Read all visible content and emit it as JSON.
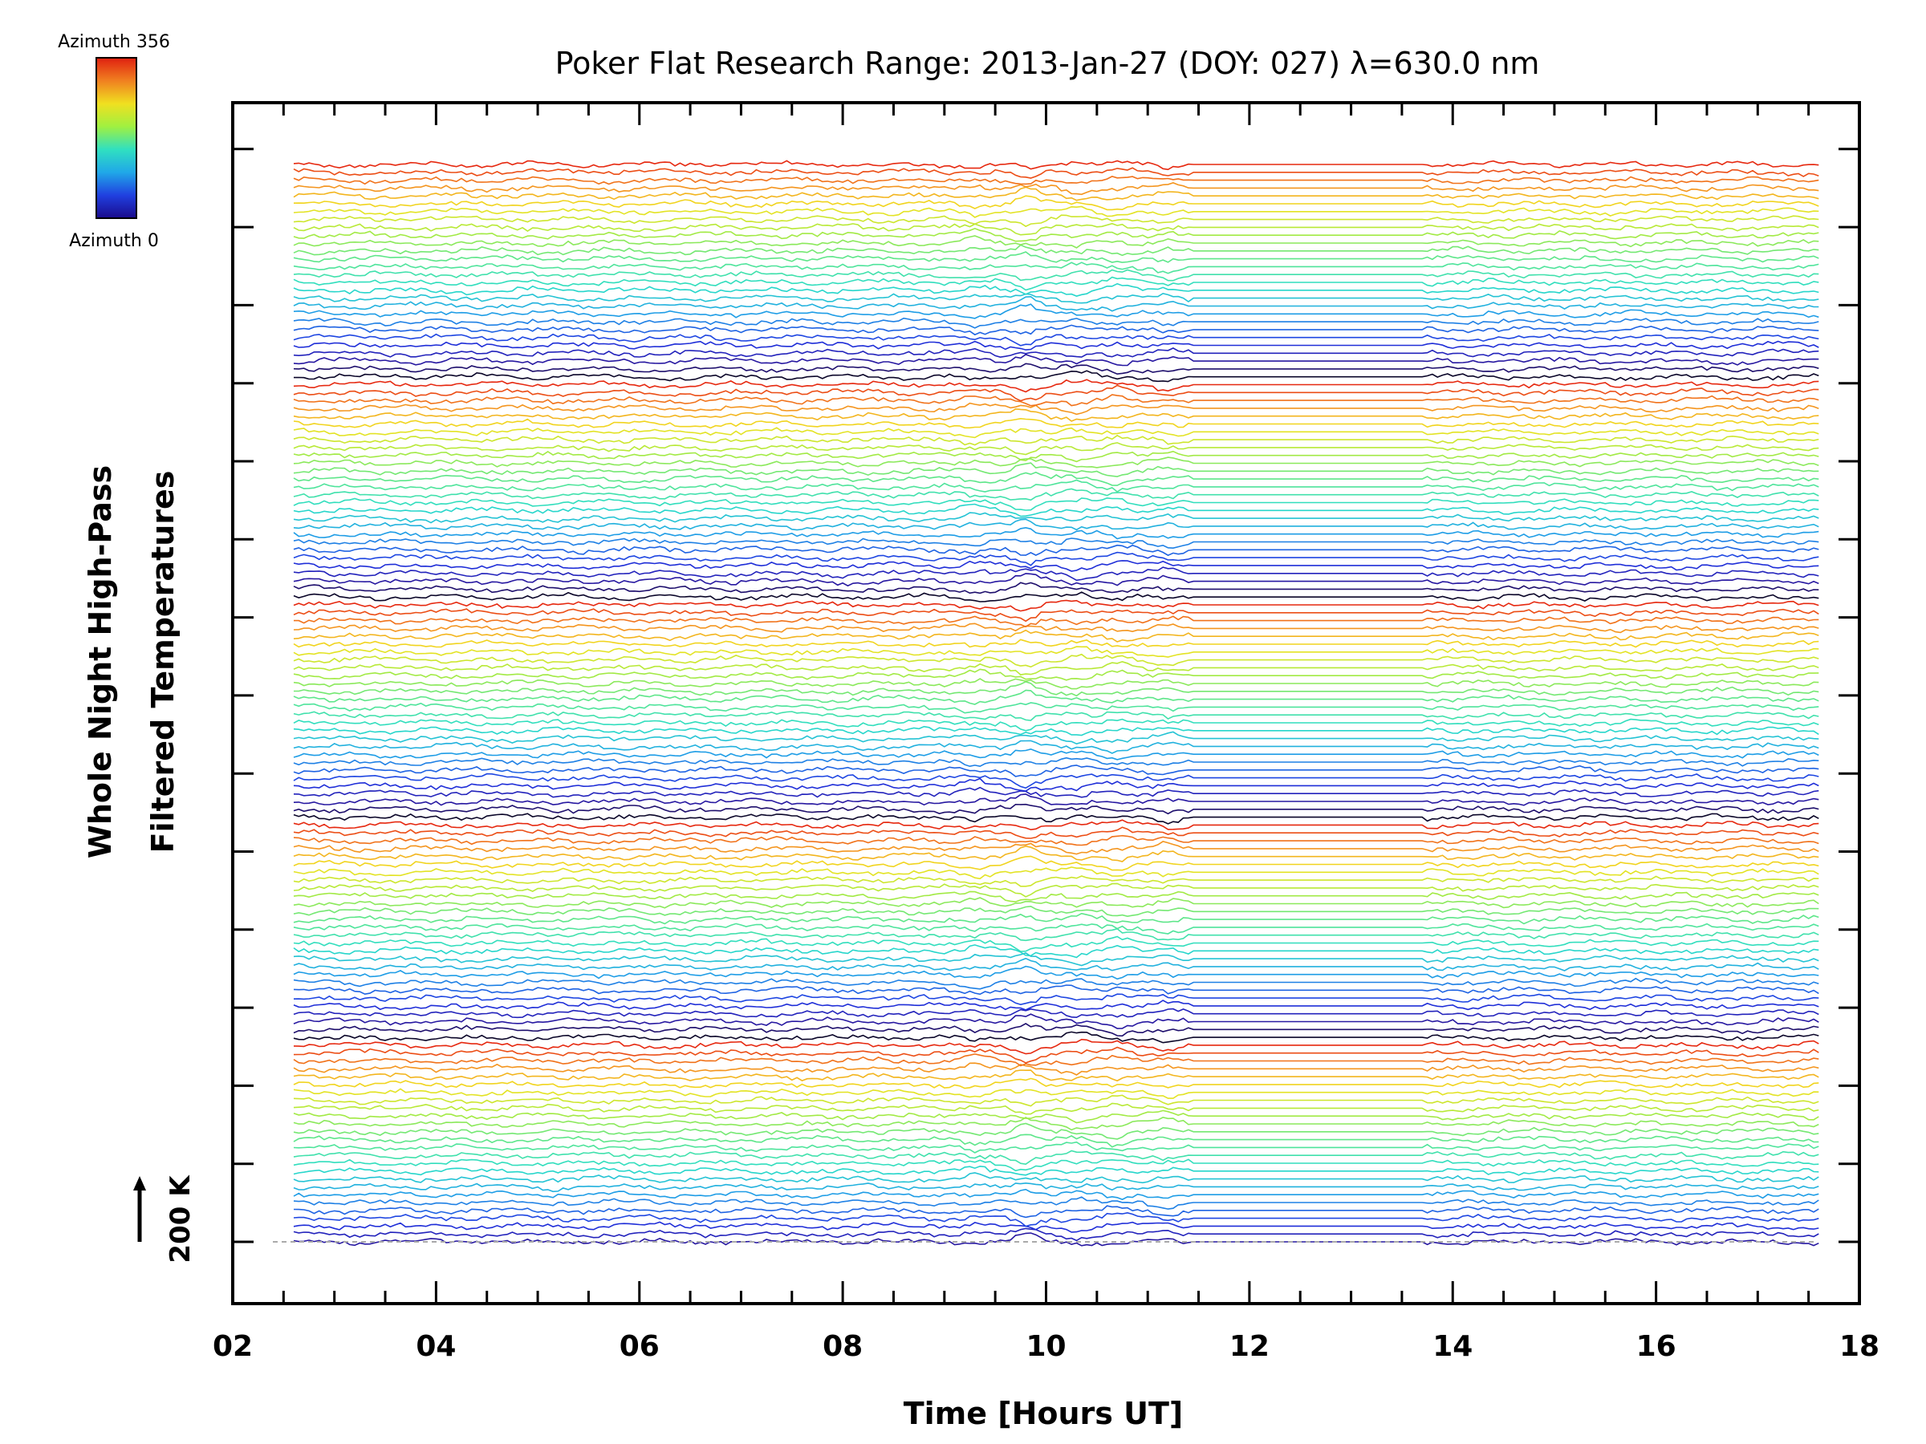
{
  "chart_data": {
    "type": "line",
    "title": "Poker Flat Research Range: 2013-Jan-27 (DOY: 027) λ=630.0 nm",
    "xlabel": "Time [Hours UT]",
    "ylabel_line1": "Whole Night High-Pass",
    "ylabel_line2": "Filtered Temperatures",
    "xlim": [
      2,
      18
    ],
    "x_ticks": [
      "02",
      "04",
      "06",
      "08",
      "10",
      "12",
      "14",
      "16",
      "18"
    ],
    "x_range_data": [
      2.6,
      17.6
    ],
    "data_gap": [
      11.45,
      13.75
    ],
    "scale_bar_label": "200 K",
    "series_count": 138,
    "grid": false,
    "legend": "colorbar top-left",
    "colorbar": {
      "top_label": "Azimuth 356",
      "bottom_label": "Azimuth 0",
      "colors": [
        "#1a0a8c",
        "#2040e0",
        "#20a8e8",
        "#30e0c0",
        "#a0f040",
        "#f0e020",
        "#f08020",
        "#e02010"
      ]
    },
    "disturbance_times": [
      9.3,
      9.8,
      10.3,
      10.7,
      11.2
    ]
  }
}
